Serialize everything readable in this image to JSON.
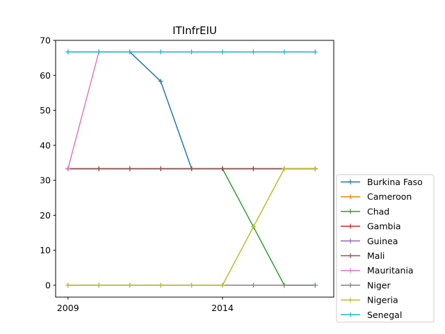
{
  "chart_data": {
    "type": "line",
    "title": "ITInfrEIU",
    "xlabel": "",
    "ylabel": "",
    "x": [
      2009,
      2010,
      2011,
      2012,
      2013,
      2014,
      2015,
      2016,
      2017
    ],
    "xlim": [
      2008.6,
      2017.6
    ],
    "ylim": [
      -3.4,
      70
    ],
    "xticks": [
      2009,
      2014
    ],
    "xtick_labels": [
      "2009",
      "2014"
    ],
    "yticks": [
      0,
      10,
      20,
      30,
      40,
      50,
      60,
      70
    ],
    "ytick_labels": [
      "0",
      "10",
      "20",
      "30",
      "40",
      "50",
      "60",
      "70"
    ],
    "grid": false,
    "legend_position": "outside-right-bottom",
    "marker": "+",
    "series": [
      {
        "name": "Burkina Faso",
        "color": "#1f77b4",
        "values": [
          66.7,
          66.7,
          66.7,
          58.3,
          33.3,
          33.3,
          33.3,
          33.3,
          33.3
        ]
      },
      {
        "name": "Cameroon",
        "color": "#ff7f0e",
        "values": [
          33.3,
          33.3,
          33.3,
          33.3,
          33.3,
          33.3,
          33.3,
          33.3,
          33.3
        ]
      },
      {
        "name": "Chad",
        "color": "#2ca02c",
        "values": [
          33.3,
          33.3,
          33.3,
          33.3,
          33.3,
          33.3,
          16.7,
          0,
          0
        ]
      },
      {
        "name": "Gambia",
        "color": "#d62728",
        "values": [
          33.3,
          33.3,
          33.3,
          33.3,
          33.3,
          33.3,
          33.3,
          33.3,
          33.3
        ]
      },
      {
        "name": "Guinea",
        "color": "#9467bd",
        "values": [
          33.3,
          33.3,
          33.3,
          33.3,
          33.3,
          33.3,
          33.3,
          33.3,
          33.3
        ]
      },
      {
        "name": "Mali",
        "color": "#8c564b",
        "values": [
          33.3,
          33.3,
          33.3,
          33.3,
          33.3,
          33.3,
          33.3,
          33.3,
          33.3
        ]
      },
      {
        "name": "Mauritania",
        "color": "#e377c2",
        "values": [
          33.3,
          66.7,
          66.7,
          66.7,
          66.7,
          66.7,
          66.7,
          66.7,
          66.7
        ]
      },
      {
        "name": "Niger",
        "color": "#7f7f7f",
        "values": [
          0,
          0,
          0,
          0,
          0,
          0,
          0,
          0,
          0
        ]
      },
      {
        "name": "Nigeria",
        "color": "#bcbd22",
        "values": [
          0,
          0,
          0,
          0,
          0,
          0,
          16.7,
          33.3,
          33.3
        ]
      },
      {
        "name": "Senegal",
        "color": "#17becf",
        "values": [
          66.7,
          66.7,
          66.7,
          66.7,
          66.7,
          66.7,
          66.7,
          66.7,
          66.7
        ]
      }
    ]
  }
}
